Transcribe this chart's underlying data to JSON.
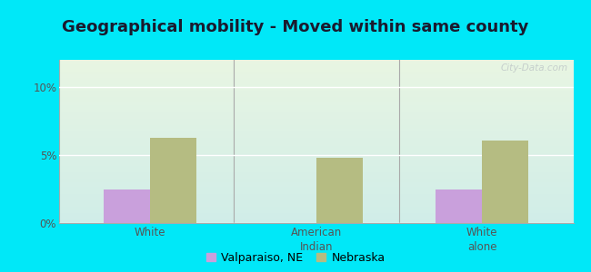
{
  "title": "Geographical mobility - Moved within same county",
  "categories": [
    "White",
    "American\nIndian",
    "White\nalone"
  ],
  "valparaiso_values": [
    2.5,
    0,
    2.5
  ],
  "nebraska_values": [
    6.3,
    4.8,
    6.1
  ],
  "valparaiso_color": "#c9a0dc",
  "nebraska_color": "#b5bc82",
  "ylim": [
    0,
    12
  ],
  "yticks": [
    0,
    5,
    10
  ],
  "ytick_labels": [
    "0%",
    "5%",
    "10%"
  ],
  "grad_top": "#e8f5e2",
  "grad_bottom": "#d0ede8",
  "outer_bg": "#00e8f8",
  "bar_width": 0.28,
  "legend_valparaiso": "Valparaiso, NE",
  "legend_nebraska": "Nebraska",
  "title_fontsize": 13,
  "watermark": "City-Data.com"
}
